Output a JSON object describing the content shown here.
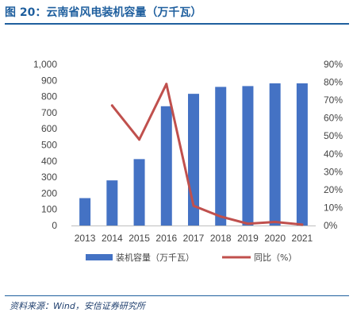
{
  "header": {
    "title": "图 20：云南省风电装机容量（万千瓦）"
  },
  "footer": {
    "source": "资料来源：Wind，安信证券研究所"
  },
  "chart_data": {
    "type": "bar",
    "categories": [
      "2013",
      "2014",
      "2015",
      "2016",
      "2017",
      "2018",
      "2019",
      "2020",
      "2021"
    ],
    "series": [
      {
        "name": "装机容量（万千瓦）",
        "type": "bar",
        "axis": "left",
        "color": "#4472c4",
        "values": [
          170,
          280,
          412,
          740,
          817,
          860,
          865,
          882,
          882
        ]
      },
      {
        "name": "同比（%）",
        "type": "line",
        "axis": "right",
        "color": "#c0504d",
        "values": [
          null,
          67,
          48,
          79,
          11,
          5,
          1,
          2,
          0.5
        ]
      }
    ],
    "ylim_left": [
      0,
      1000
    ],
    "yticks_left": [
      "0",
      "100",
      "200",
      "300",
      "400",
      "500",
      "600",
      "700",
      "800",
      "900",
      "1,000"
    ],
    "ylim_right": [
      0,
      90
    ],
    "yticks_right": [
      "0%",
      "10%",
      "20%",
      "30%",
      "40%",
      "50%",
      "60%",
      "70%",
      "80%",
      "90%"
    ],
    "grid": false,
    "legend_position": "bottom"
  }
}
